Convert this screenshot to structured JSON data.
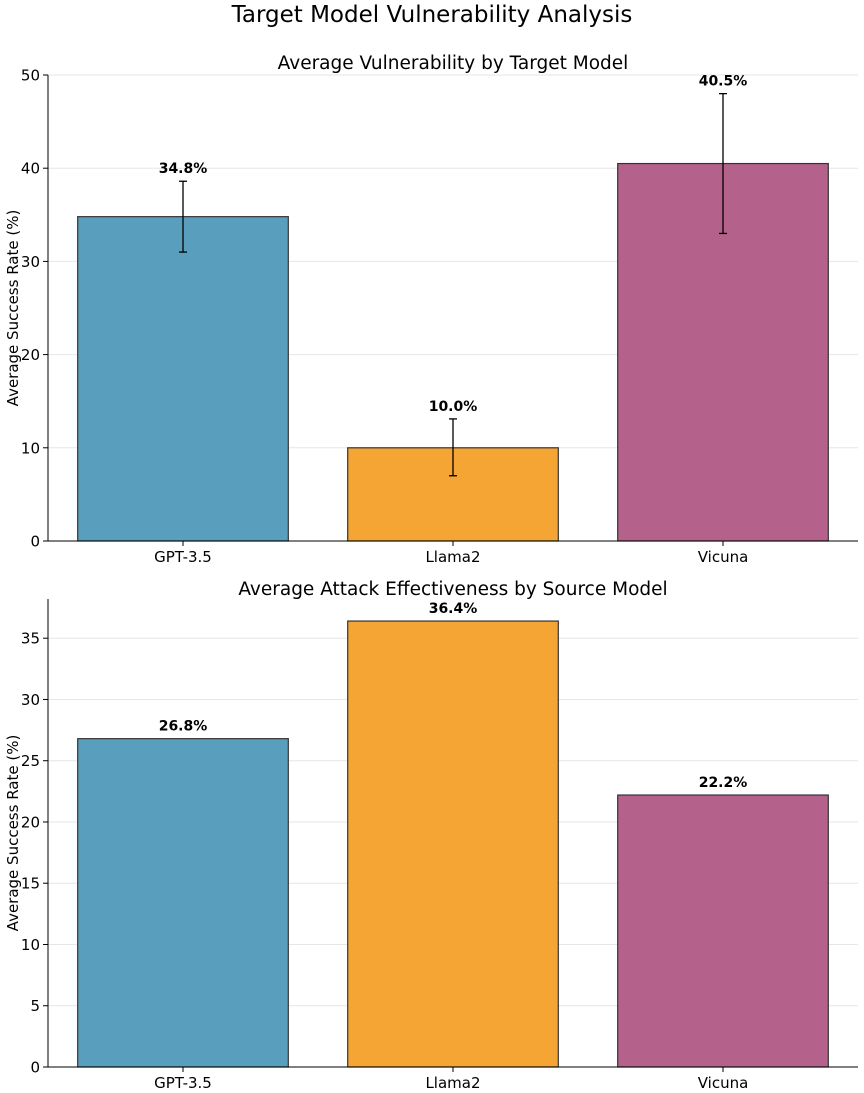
{
  "figure_title": "Target Model Vulnerability Analysis",
  "colors": {
    "GPT-3.5": "#5a9ebe",
    "Llama2": "#f4a534",
    "Vicuna": "#b4628b",
    "edge": "#333333"
  },
  "chart_data": [
    {
      "type": "bar",
      "title": "Average Vulnerability by Target Model",
      "xlabel": "",
      "ylabel": "Average Success Rate (%)",
      "categories": [
        "GPT-3.5",
        "Llama2",
        "Vicuna"
      ],
      "values": [
        34.8,
        10.0,
        40.5
      ],
      "error_low": [
        31.0,
        7.0,
        33.0
      ],
      "error_high": [
        38.6,
        13.1,
        48.0
      ],
      "value_labels": [
        "34.8%",
        "10.0%",
        "40.5%"
      ],
      "ylim": [
        0,
        50
      ],
      "yticks": [
        0,
        10,
        20,
        30,
        40,
        50
      ],
      "grid": "y"
    },
    {
      "type": "bar",
      "title": "Average Attack Effectiveness by Source Model",
      "xlabel": "",
      "ylabel": "Average Success Rate (%)",
      "categories": [
        "GPT-3.5",
        "Llama2",
        "Vicuna"
      ],
      "values": [
        26.8,
        36.4,
        22.2
      ],
      "value_labels": [
        "26.8%",
        "36.4%",
        "22.2%"
      ],
      "ylim": [
        0,
        38.2
      ],
      "yticks": [
        0,
        5,
        10,
        15,
        20,
        25,
        30,
        35
      ],
      "grid": "y"
    }
  ]
}
